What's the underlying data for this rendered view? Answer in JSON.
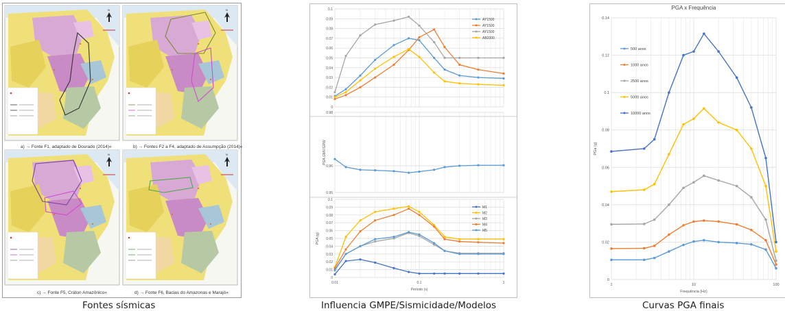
{
  "captions": {
    "left": "Fontes  sísmicas",
    "middle": "Influencia GMPE/Sismicidade/Modelos",
    "right": "Curvas PGA finais"
  },
  "maps": {
    "a": "a) → Fonte F1, adaptado de Dourado (2014)«",
    "b": "b) → Fontes F2 a F4, adaptado de Assumpção (2014)«",
    "c": "c) → Fonte F5, Cráton Amazônico«",
    "d": "d) → Fonte F6, Bacias do Amazonas e Marajó«",
    "north_label": "N"
  },
  "colors": {
    "blue": "#5b9bd5",
    "orange": "#ed7d31",
    "gray": "#a5a5a5",
    "yellow": "#ffc000",
    "darkblue": "#4472c4",
    "grid": "#d9d9d9"
  },
  "chart_data": [
    {
      "type": "line",
      "xscale": "log",
      "xlim": [
        0.01,
        1
      ],
      "ylim": [
        0,
        0.1
      ],
      "yticks": [
        "0",
        "0.01",
        "0.02",
        "0.03",
        "0.04",
        "0.05",
        "0.06",
        "0.07",
        "0.08",
        "0.09",
        "0.1"
      ],
      "x": [
        0.01,
        0.0135,
        0.02,
        0.03,
        0.05,
        0.075,
        0.1,
        0.15,
        0.2,
        0.3,
        0.5,
        1
      ],
      "series": [
        {
          "name": "AY1500",
          "color": "#5b9bd5",
          "values": [
            0.011,
            0.018,
            0.032,
            0.048,
            0.063,
            0.07,
            0.068,
            0.05,
            0.038,
            0.032,
            0.03,
            0.029
          ]
        },
        {
          "name": "AY1500",
          "color": "#ed7d31",
          "values": [
            0.008,
            0.012,
            0.02,
            0.03,
            0.043,
            0.058,
            0.071,
            0.079,
            0.061,
            0.043,
            0.038,
            0.034
          ]
        },
        {
          "name": "AY1500",
          "color": "#a5a5a5",
          "values": [
            0.015,
            0.052,
            0.073,
            0.084,
            0.088,
            0.092,
            0.083,
            0.066,
            0.05,
            0.05,
            0.05,
            0.05
          ]
        },
        {
          "name": "AB2000",
          "color": "#ffc000",
          "values": [
            0.01,
            0.015,
            0.027,
            0.039,
            0.051,
            0.059,
            0.051,
            0.035,
            0.026,
            0.024,
            0.023,
            0.022
          ]
        }
      ]
    },
    {
      "type": "line",
      "xscale": "log",
      "xlim": [
        0.01,
        1
      ],
      "ylim": [
        0.95,
        0.98
      ],
      "yticks": [
        "0.98",
        "0.96",
        "0.95"
      ],
      "ylabel": "PGA GMV/GRW",
      "x": [
        0.01,
        0.0135,
        0.02,
        0.03,
        0.05,
        0.075,
        0.1,
        0.15,
        0.2,
        0.3,
        0.5,
        1
      ],
      "series": [
        {
          "name": "",
          "color": "#5b9bd5",
          "values": [
            0.9625,
            0.9595,
            0.9585,
            0.9583,
            0.958,
            0.9574,
            0.9578,
            0.9585,
            0.9595,
            0.96,
            0.9602,
            0.9602
          ]
        }
      ]
    },
    {
      "type": "line",
      "xscale": "log",
      "xlim": [
        0.01,
        1
      ],
      "ylim": [
        0,
        0.1
      ],
      "yticks": [
        "0",
        "0.01",
        "0.02",
        "0.03",
        "0.04",
        "0.05",
        "0.06",
        "0.07",
        "0.08",
        "0.09",
        "0.1"
      ],
      "xticks": [
        "0.01",
        "0.1",
        "1"
      ],
      "xlabel": "Período (s)",
      "ylabel": "PGA (g)",
      "x": [
        0.01,
        0.0135,
        0.02,
        0.03,
        0.05,
        0.075,
        0.1,
        0.15,
        0.2,
        0.3,
        0.5,
        1
      ],
      "series": [
        {
          "name": "M1",
          "color": "#4472c4",
          "values": [
            0.004,
            0.021,
            0.023,
            0.019,
            0.012,
            0.007,
            0.005,
            0.005,
            0.005,
            0.005,
            0.005,
            0.005
          ]
        },
        {
          "name": "M2",
          "color": "#ffc000",
          "values": [
            0.013,
            0.052,
            0.073,
            0.084,
            0.088,
            0.091,
            0.084,
            0.067,
            0.052,
            0.049,
            0.049,
            0.049
          ]
        },
        {
          "name": "M3",
          "color": "#a5a5a5",
          "values": [
            0.009,
            0.03,
            0.04,
            0.046,
            0.05,
            0.057,
            0.053,
            0.042,
            0.034,
            0.031,
            0.031,
            0.031
          ]
        },
        {
          "name": "M4",
          "color": "#ed7d31",
          "values": [
            0.012,
            0.036,
            0.059,
            0.073,
            0.08,
            0.088,
            0.08,
            0.065,
            0.049,
            0.046,
            0.045,
            0.044
          ]
        },
        {
          "name": "M5",
          "color": "#5b9bd5",
          "values": [
            0.01,
            0.03,
            0.04,
            0.049,
            0.052,
            0.058,
            0.055,
            0.044,
            0.034,
            0.03,
            0.03,
            0.03
          ]
        }
      ]
    },
    {
      "type": "line",
      "title": "PGA x Frequência",
      "xscale": "log",
      "xlim": [
        1,
        100
      ],
      "ylim": [
        0,
        0.14
      ],
      "yticks": [
        "0",
        "0.02",
        "0.04",
        "0.06",
        "0.08",
        "0.1",
        "0.12",
        "0.14"
      ],
      "xticks": [
        "1",
        "10",
        "100"
      ],
      "xlabel": "Frequência (Hz)",
      "ylabel": "PGa (g)",
      "x": [
        1,
        2.5,
        3.33,
        5,
        7.5,
        10,
        13.3,
        20,
        33.3,
        50,
        75,
        100
      ],
      "series": [
        {
          "name": "500 anos",
          "color": "#5b9bd5",
          "values": [
            0.0105,
            0.0105,
            0.0115,
            0.015,
            0.0185,
            0.0203,
            0.021,
            0.02,
            0.0195,
            0.0188,
            0.016,
            0.006
          ]
        },
        {
          "name": "1000 anos",
          "color": "#ed7d31",
          "values": [
            0.0165,
            0.0167,
            0.018,
            0.024,
            0.029,
            0.031,
            0.0315,
            0.031,
            0.0295,
            0.0265,
            0.021,
            0.008
          ]
        },
        {
          "name": "2500 anos",
          "color": "#a5a5a5",
          "values": [
            0.0295,
            0.0297,
            0.032,
            0.04,
            0.049,
            0.052,
            0.0555,
            0.053,
            0.05,
            0.044,
            0.032,
            0.01
          ]
        },
        {
          "name": "5000 anos",
          "color": "#ffc000",
          "values": [
            0.047,
            0.048,
            0.051,
            0.067,
            0.083,
            0.086,
            0.0915,
            0.084,
            0.08,
            0.07,
            0.05,
            0.015
          ]
        },
        {
          "name": "10000 anos",
          "color": "#4472c4",
          "values": [
            0.0685,
            0.07,
            0.075,
            0.1,
            0.12,
            0.122,
            0.1315,
            0.122,
            0.108,
            0.092,
            0.065,
            0.02
          ]
        }
      ]
    }
  ]
}
